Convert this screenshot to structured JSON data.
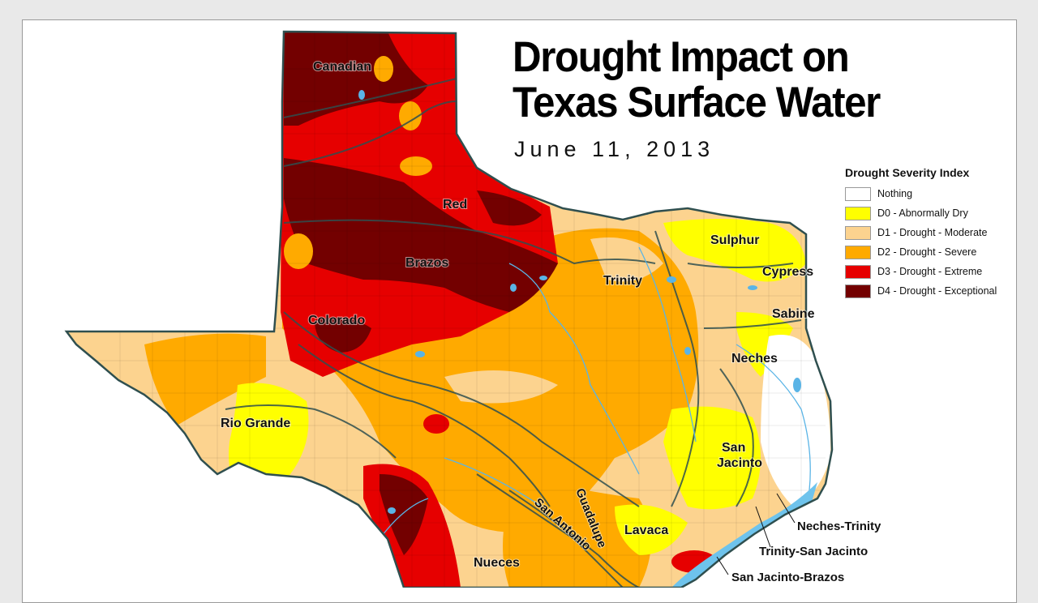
{
  "title_line1": "Drought Impact on",
  "title_line2": "Texas Surface Water",
  "date": "June 11, 2013",
  "legend": {
    "title": "Drought Severity Index",
    "items": [
      {
        "label": "Nothing",
        "color": "#ffffff"
      },
      {
        "label": "D0 - Abnormally Dry",
        "color": "#ffff00"
      },
      {
        "label": "D1 - Drought - Moderate",
        "color": "#fcd38f"
      },
      {
        "label": "D2 - Drought - Severe",
        "color": "#ffaa00"
      },
      {
        "label": "D3 - Drought - Extreme",
        "color": "#e60000"
      },
      {
        "label": "D4 - Drought - Exceptional",
        "color": "#730000"
      }
    ]
  },
  "basins": {
    "canadian": "Canadian",
    "red": "Red",
    "brazos": "Brazos",
    "colorado": "Colorado",
    "rio_grande": "Rio Grande",
    "trinity": "Trinity",
    "sulphur": "Sulphur",
    "cypress": "Cypress",
    "sabine": "Sabine",
    "neches": "Neches",
    "san_jacinto_1": "San",
    "san_jacinto_2": "Jacinto",
    "guadalupe": "Guadalupe",
    "san_antonio": "San Antonio",
    "lavaca": "Lavaca",
    "nueces": "Nueces",
    "neches_trinity": "Neches-Trinity",
    "trinity_san_jacinto": "Trinity-San Jacinto",
    "san_jacinto_brazos": "San Jacinto-Brazos"
  }
}
